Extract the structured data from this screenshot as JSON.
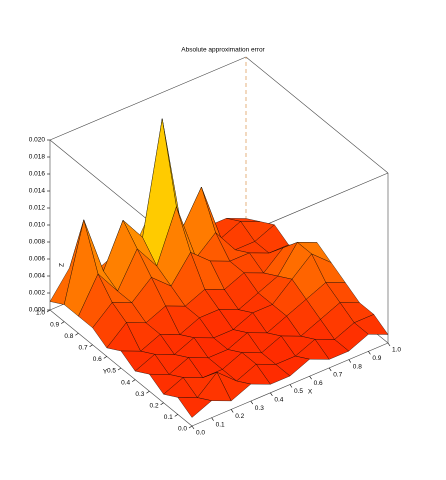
{
  "chart_data": {
    "type": "surface",
    "title": "Absolute approximation error",
    "x_label": "X",
    "y_label": "Y",
    "z_label": "Z",
    "x": [
      0,
      0.1,
      0.2,
      0.3,
      0.4,
      0.5,
      0.6,
      0.7,
      0.8,
      0.9,
      1
    ],
    "y": [
      0,
      0.1,
      0.2,
      0.3,
      0.4,
      0.5,
      0.6,
      0.7,
      0.8,
      0.9,
      1
    ],
    "z": [
      [
        0.001,
        0.002,
        0.001,
        0.002,
        0.001,
        0.001,
        0.002,
        0.001,
        0.001,
        0.002,
        0.001
      ],
      [
        0.002,
        0.001,
        0.003,
        0.001,
        0.002,
        0.001,
        0.001,
        0.002,
        0.001,
        0.002,
        0.002
      ],
      [
        0.001,
        0.002,
        0.001,
        0.001,
        0.002,
        0.001,
        0.002,
        0.001,
        0.002,
        0.003,
        0.002
      ],
      [
        0.002,
        0.001,
        0.002,
        0.001,
        0.001,
        0.002,
        0.001,
        0.002,
        0.003,
        0.004,
        0.003
      ],
      [
        0.001,
        0.002,
        0.001,
        0.002,
        0.001,
        0.001,
        0.002,
        0.002,
        0.004,
        0.006,
        0.004
      ],
      [
        0.002,
        0.001,
        0.002,
        0.001,
        0.002,
        0.002,
        0.001,
        0.002,
        0.003,
        0.006,
        0.005
      ],
      [
        0.001,
        0.003,
        0.002,
        0.003,
        0.002,
        0.003,
        0.002,
        0.003,
        0.002,
        0.004,
        0.003
      ],
      [
        0.002,
        0.004,
        0.003,
        0.005,
        0.003,
        0.006,
        0.004,
        0.003,
        0.003,
        0.002,
        0.002
      ],
      [
        0.002,
        0.006,
        0.003,
        0.007,
        0.004,
        0.01,
        0.003,
        0.005,
        0.002,
        0.002,
        0.003
      ],
      [
        0.002,
        0.011,
        0.004,
        0.009,
        0.006,
        0.019,
        0.005,
        0.009,
        0.002,
        0.003,
        0.002
      ],
      [
        0.001,
        0.004,
        0.002,
        0.003,
        0.002,
        0.006,
        0.002,
        0.003,
        0.002,
        0.002,
        0.001
      ]
    ],
    "xlim": [
      0,
      1
    ],
    "ylim": [
      0,
      1
    ],
    "zlim": [
      0,
      0.02
    ],
    "xticks": [
      {
        "value": 0,
        "label": "0.0"
      },
      0.1,
      0.2,
      0.3,
      0.4,
      0.5,
      0.6,
      0.7,
      0.8,
      0.9,
      {
        "value": 1,
        "label": "1.0"
      }
    ],
    "yticks": [
      {
        "value": 0,
        "label": "0.0"
      },
      0.1,
      0.2,
      0.3,
      0.4,
      0.5,
      0.6,
      0.7,
      0.8,
      0.9,
      {
        "value": 1,
        "label": "1.0"
      }
    ],
    "zticks": [
      {
        "value": 0,
        "label": "0.000"
      },
      0.002,
      0.004,
      0.006,
      0.008,
      {
        "value": 0.01,
        "label": "0.010"
      },
      0.012,
      0.014,
      0.016,
      0.018,
      {
        "value": 0.02,
        "label": "0.020"
      }
    ]
  }
}
